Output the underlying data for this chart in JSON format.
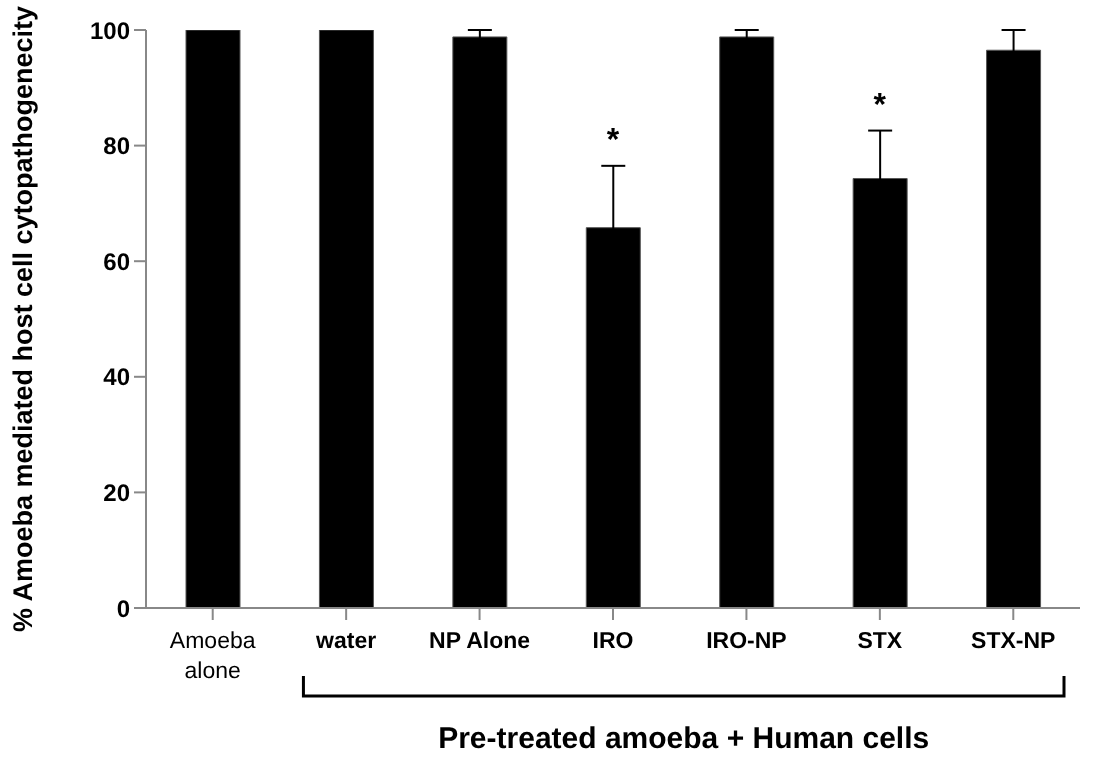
{
  "chart_data": {
    "type": "bar",
    "ylabel": "% Amoeba mediated host cell cytopathogenecity",
    "xlabel": "Pre-treated amoeba + Human cells",
    "categories": [
      "Amoeba alone",
      "water",
      "NP Alone",
      "IRO",
      "IRO-NP",
      "STX",
      "STX-NP"
    ],
    "values": [
      100,
      100,
      98.8,
      65.8,
      98.8,
      74.3,
      96.5
    ],
    "errors": [
      null,
      null,
      1.2,
      10.7,
      1.2,
      8.3,
      3.5
    ],
    "color": "#000000",
    "ylim": [
      0,
      100
    ],
    "yticks": [
      0,
      20,
      40,
      60,
      80,
      100
    ],
    "grid": false,
    "annotations": [
      {
        "text": "*",
        "x": "IRO",
        "y": 76.5
      },
      {
        "text": "*",
        "x": "STX",
        "y": 82.6
      }
    ]
  }
}
